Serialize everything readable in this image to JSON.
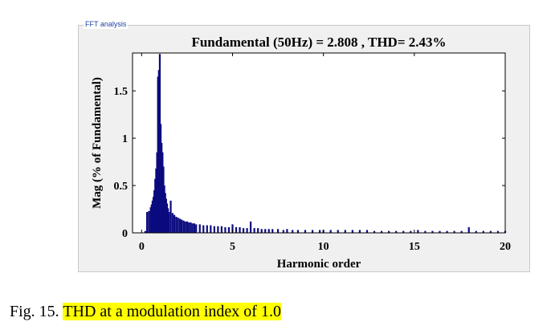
{
  "panel": {
    "title": "FFT analysis",
    "background_color": "#f0f0f0"
  },
  "caption": {
    "prefix": "Fig. 15. ",
    "highlighted": "THD at a modulation index of 1.0",
    "highlight_color": "#ffff00"
  },
  "chart_data": {
    "type": "bar",
    "title": "Fundamental (50Hz) = 2.808 , THD= 2.43%",
    "xlabel": "Harmonic order",
    "ylabel": "Mag (% of Fundamental)",
    "xlim": [
      -0.5,
      20
    ],
    "ylim": [
      0,
      1.9
    ],
    "xticks": [
      0,
      5,
      10,
      15,
      20
    ],
    "yticks": [
      0,
      0.5,
      1,
      1.5
    ],
    "grid": false,
    "bar_color": "#0b0b7f",
    "x": [
      0.2,
      0.3,
      0.4,
      0.5,
      0.55,
      0.6,
      0.65,
      0.7,
      0.75,
      0.8,
      0.85,
      0.9,
      0.95,
      1.0,
      1.05,
      1.1,
      1.15,
      1.2,
      1.25,
      1.3,
      1.35,
      1.4,
      1.45,
      1.5,
      1.6,
      1.7,
      1.8,
      1.9,
      2.0,
      2.1,
      2.2,
      2.3,
      2.4,
      2.5,
      2.6,
      2.7,
      2.8,
      2.9,
      3.0,
      3.2,
      3.4,
      3.6,
      3.8,
      4.0,
      4.2,
      4.4,
      4.6,
      4.8,
      5.0,
      5.2,
      5.4,
      5.6,
      5.8,
      6.0,
      6.2,
      6.4,
      6.6,
      6.8,
      7.0,
      7.2,
      7.5,
      7.8,
      8.0,
      8.3,
      8.6,
      9.0,
      9.4,
      9.8,
      10.0,
      10.4,
      10.8,
      11.2,
      11.6,
      12.0,
      12.4,
      12.8,
      13.2,
      13.6,
      14.0,
      14.4,
      14.8,
      15.2,
      15.6,
      16.0,
      16.4,
      16.8,
      17.2,
      17.6,
      18.0,
      18.4,
      18.8,
      19.2,
      19.6,
      20.0
    ],
    "values": [
      0.02,
      0.22,
      0.23,
      0.27,
      0.3,
      0.34,
      0.38,
      0.45,
      0.57,
      0.68,
      0.85,
      1.65,
      1.72,
      1.89,
      1.15,
      0.95,
      0.85,
      0.7,
      0.5,
      0.42,
      0.36,
      0.31,
      0.26,
      0.22,
      0.34,
      0.21,
      0.19,
      0.17,
      0.16,
      0.15,
      0.14,
      0.13,
      0.12,
      0.12,
      0.11,
      0.11,
      0.1,
      0.1,
      0.09,
      0.09,
      0.08,
      0.08,
      0.08,
      0.07,
      0.07,
      0.07,
      0.06,
      0.06,
      0.09,
      0.06,
      0.06,
      0.05,
      0.05,
      0.12,
      0.05,
      0.05,
      0.04,
      0.04,
      0.04,
      0.04,
      0.04,
      0.03,
      0.04,
      0.03,
      0.03,
      0.03,
      0.03,
      0.03,
      0.03,
      0.03,
      0.03,
      0.03,
      0.03,
      0.03,
      0.03,
      0.02,
      0.02,
      0.02,
      0.02,
      0.02,
      0.02,
      0.03,
      0.02,
      0.02,
      0.02,
      0.02,
      0.02,
      0.02,
      0.06,
      0.02,
      0.02,
      0.02,
      0.02,
      0.02
    ]
  }
}
